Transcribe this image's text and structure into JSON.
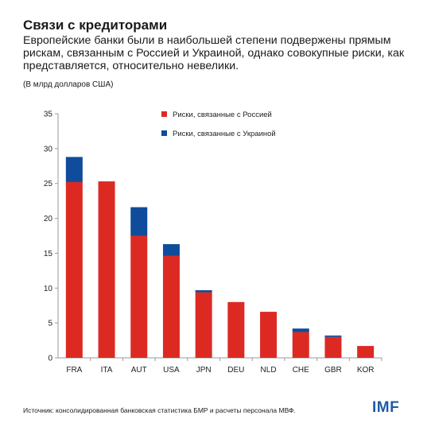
{
  "header": {
    "title": "Связи с кредиторами",
    "subtitle": "Европейские банки были в наибольшей степени подвержены прямым рискам, связанным с Россией и Украиной, однако совокупные риски, как представляется, относительно невелики.",
    "units": "(В млрд долларов США)"
  },
  "footer": {
    "source": "Источник: консолидированная банковская статистика БМР и расчеты персонала МВФ.",
    "logo": "IMF"
  },
  "colors": {
    "russia": "#dc2a23",
    "ukraine": "#0f4c9c",
    "axis": "#9a9a9a"
  },
  "chart_data": {
    "type": "bar",
    "stacked": true,
    "categories": [
      "FRA",
      "ITA",
      "AUT",
      "USA",
      "JPN",
      "DEU",
      "NLD",
      "CHE",
      "GBR",
      "KOR"
    ],
    "series": [
      {
        "name": "Риски, связанные с Россией",
        "color": "#dc2a23",
        "values": [
          25.2,
          25.3,
          17.5,
          14.6,
          9.4,
          8.0,
          6.6,
          3.7,
          3.0,
          1.7
        ]
      },
      {
        "name": "Риски, связанные с Украиной",
        "color": "#0f4c9c",
        "values": [
          3.6,
          0.0,
          4.1,
          1.7,
          0.3,
          0.0,
          0.0,
          0.5,
          0.2,
          0.0
        ]
      }
    ],
    "ylim": [
      0,
      35
    ],
    "yticks": [
      0,
      5,
      10,
      15,
      20,
      25,
      30,
      35
    ],
    "legend_position": "top-right",
    "grid": false
  }
}
